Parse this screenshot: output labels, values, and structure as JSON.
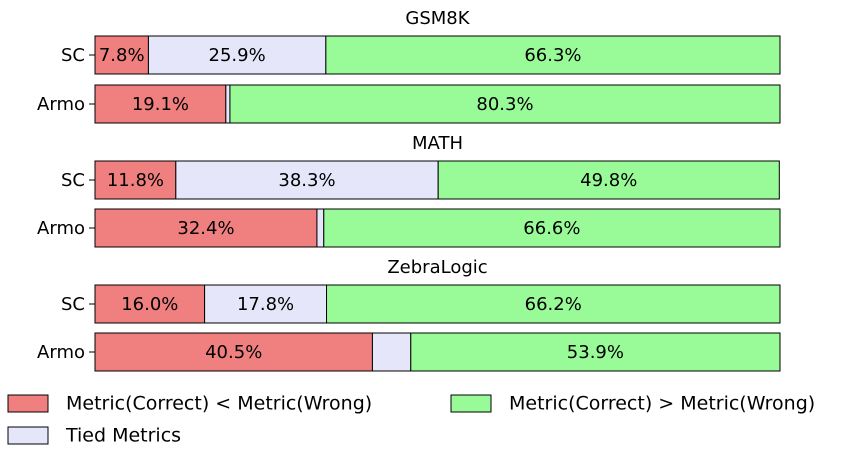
{
  "chart_data": {
    "type": "bar",
    "orientation": "horizontal",
    "stacked": true,
    "normalized_percent": true,
    "panels": [
      {
        "title": "GSM8K",
        "categories": [
          "SC",
          "Armo"
        ],
        "series_values": {
          "lt": [
            7.8,
            19.1
          ],
          "tied": [
            25.9,
            0.6
          ],
          "gt": [
            66.3,
            80.3
          ]
        },
        "labels": {
          "lt": [
            "7.8%",
            "19.1%"
          ],
          "tied": [
            "25.9%",
            ""
          ],
          "gt": [
            "66.3%",
            "80.3%"
          ]
        }
      },
      {
        "title": "MATH",
        "categories": [
          "SC",
          "Armo"
        ],
        "series_values": {
          "lt": [
            11.8,
            32.4
          ],
          "tied": [
            38.3,
            1.0
          ],
          "gt": [
            49.8,
            66.6
          ]
        },
        "labels": {
          "lt": [
            "11.8%",
            "32.4%"
          ],
          "tied": [
            "38.3%",
            ""
          ],
          "gt": [
            "49.8%",
            "66.6%"
          ]
        }
      },
      {
        "title": "ZebraLogic",
        "categories": [
          "SC",
          "Armo"
        ],
        "series_values": {
          "lt": [
            16.0,
            40.5
          ],
          "tied": [
            17.8,
            5.6
          ],
          "gt": [
            66.2,
            53.9
          ]
        },
        "labels": {
          "lt": [
            "16.0%",
            "40.5%"
          ],
          "tied": [
            "17.8%",
            ""
          ],
          "gt": [
            "66.2%",
            "53.9%"
          ]
        }
      }
    ],
    "series": [
      {
        "key": "lt",
        "name": "Metric(Correct) < Metric(Wrong)",
        "color": "#f08080"
      },
      {
        "key": "tied",
        "name": "Tied Metrics",
        "color": "#e6e6fa"
      },
      {
        "key": "gt",
        "name": "Metric(Correct) > Metric(Wrong)",
        "color": "#98fb98"
      }
    ],
    "xlim": [
      0,
      100
    ],
    "legend_placement": "bottom",
    "grid": false
  }
}
